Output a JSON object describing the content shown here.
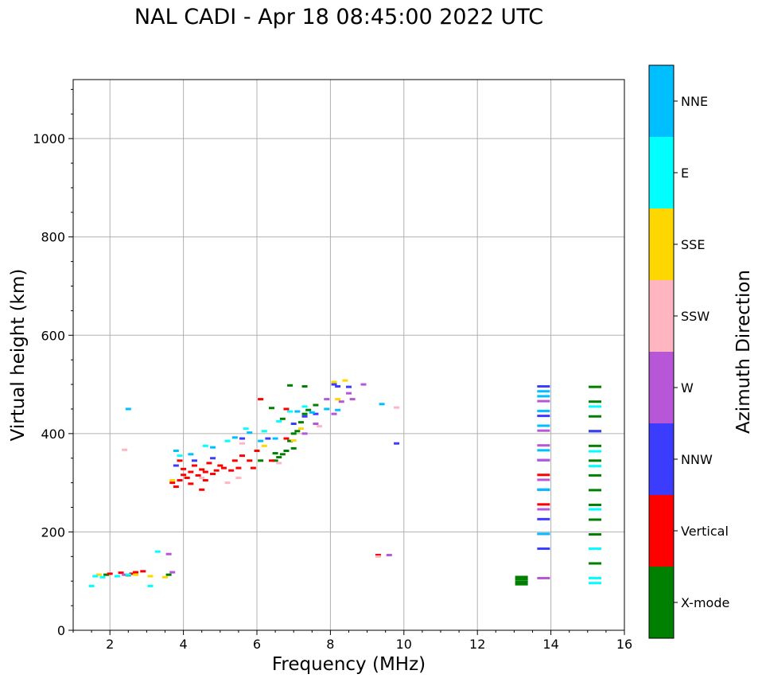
{
  "chart_data": {
    "type": "scatter",
    "title": "NAL CADI - Apr 18 08:45:00 2022 UTC",
    "xlabel": "Frequency (MHz)",
    "ylabel": "Virtual height (km)",
    "xlim": [
      1,
      16
    ],
    "ylim": [
      0,
      1120
    ],
    "xticks": [
      2,
      4,
      6,
      8,
      10,
      12,
      14,
      16
    ],
    "yticks": [
      0,
      200,
      400,
      600,
      800,
      1000
    ],
    "grid": true,
    "colorbar": {
      "label": "Azimuth Direction",
      "categories": [
        {
          "name": "X-mode",
          "color": "#008000"
        },
        {
          "name": "Vertical",
          "color": "#ff0000"
        },
        {
          "name": "NNW",
          "color": "#3c3cff"
        },
        {
          "name": "W",
          "color": "#b757d8"
        },
        {
          "name": "SSW",
          "color": "#ffb6c1"
        },
        {
          "name": "SSE",
          "color": "#ffd700"
        },
        {
          "name": "E",
          "color": "#00ffff"
        },
        {
          "name": "NNE",
          "color": "#00bfff"
        }
      ]
    },
    "series": [
      {
        "name": "X-mode",
        "points": [
          [
            1.9,
            113
          ],
          [
            2.5,
            112
          ],
          [
            3.6,
            113
          ],
          [
            6.5,
            345
          ],
          [
            6.5,
            360
          ],
          [
            6.6,
            352
          ],
          [
            6.7,
            358
          ],
          [
            6.8,
            365
          ],
          [
            6.9,
            385
          ],
          [
            7.0,
            370
          ],
          [
            7.0,
            400
          ],
          [
            7.1,
            405
          ],
          [
            7.2,
            423
          ],
          [
            7.3,
            440
          ],
          [
            7.4,
            448
          ],
          [
            7.6,
            458
          ],
          [
            6.9,
            498
          ],
          [
            7.3,
            496
          ],
          [
            13.2,
            96
          ],
          [
            13.2,
            106
          ],
          [
            15.2,
            136
          ],
          [
            15.2,
            195
          ],
          [
            15.2,
            225
          ],
          [
            15.2,
            255
          ],
          [
            15.2,
            285
          ],
          [
            15.2,
            315
          ],
          [
            15.2,
            345
          ],
          [
            15.2,
            375
          ],
          [
            15.2,
            405
          ],
          [
            15.2,
            435
          ],
          [
            15.2,
            465
          ],
          [
            15.2,
            495
          ],
          [
            6.4,
            452
          ],
          [
            6.7,
            430
          ],
          [
            6.1,
            345
          ]
        ]
      },
      {
        "name": "Vertical",
        "points": [
          [
            2.0,
            115
          ],
          [
            2.3,
            117
          ],
          [
            2.6,
            115
          ],
          [
            2.7,
            118
          ],
          [
            2.9,
            120
          ],
          [
            3.7,
            300
          ],
          [
            3.8,
            292
          ],
          [
            3.9,
            305
          ],
          [
            4.0,
            316
          ],
          [
            4.0,
            328
          ],
          [
            4.1,
            310
          ],
          [
            4.2,
            322
          ],
          [
            4.2,
            298
          ],
          [
            4.3,
            335
          ],
          [
            4.4,
            315
          ],
          [
            4.5,
            327
          ],
          [
            4.6,
            322
          ],
          [
            4.6,
            305
          ],
          [
            4.7,
            340
          ],
          [
            4.8,
            318
          ],
          [
            4.9,
            325
          ],
          [
            5.0,
            335
          ],
          [
            5.1,
            330
          ],
          [
            5.3,
            325
          ],
          [
            5.4,
            345
          ],
          [
            5.5,
            330
          ],
          [
            5.6,
            355
          ],
          [
            5.8,
            345
          ],
          [
            5.9,
            330
          ],
          [
            6.0,
            365
          ],
          [
            6.1,
            470
          ],
          [
            6.4,
            345
          ],
          [
            6.8,
            390
          ],
          [
            6.8,
            450
          ],
          [
            9.3,
            153
          ],
          [
            13.8,
            316
          ],
          [
            13.8,
            256
          ],
          [
            4.5,
            286
          ],
          [
            3.9,
            345
          ]
        ]
      },
      {
        "name": "NNW",
        "points": [
          [
            3.8,
            335
          ],
          [
            4.3,
            345
          ],
          [
            4.8,
            350
          ],
          [
            5.6,
            390
          ],
          [
            6.3,
            390
          ],
          [
            7.0,
            420
          ],
          [
            7.3,
            435
          ],
          [
            7.6,
            440
          ],
          [
            8.1,
            500
          ],
          [
            8.2,
            496
          ],
          [
            8.5,
            495
          ],
          [
            9.8,
            380
          ],
          [
            13.8,
            166
          ],
          [
            13.8,
            226
          ],
          [
            13.8,
            286
          ],
          [
            13.8,
            346
          ],
          [
            13.8,
            436
          ],
          [
            13.8,
            496
          ],
          [
            15.2,
            405
          ]
        ]
      },
      {
        "name": "W",
        "points": [
          [
            2.4,
            113
          ],
          [
            3.6,
            155
          ],
          [
            3.7,
            118
          ],
          [
            7.3,
            400
          ],
          [
            7.6,
            420
          ],
          [
            7.9,
            470
          ],
          [
            8.1,
            440
          ],
          [
            8.3,
            465
          ],
          [
            8.5,
            482
          ],
          [
            8.6,
            470
          ],
          [
            8.9,
            500
          ],
          [
            9.6,
            153
          ],
          [
            13.8,
            106
          ],
          [
            13.8,
            196
          ],
          [
            13.8,
            246
          ],
          [
            13.8,
            306
          ],
          [
            13.8,
            346
          ],
          [
            13.8,
            376
          ],
          [
            13.8,
            406
          ],
          [
            13.8,
            466
          ]
        ]
      },
      {
        "name": "SSW",
        "points": [
          [
            2.4,
            367
          ],
          [
            4.5,
            310
          ],
          [
            5.2,
            300
          ],
          [
            5.5,
            310
          ],
          [
            6.6,
            340
          ],
          [
            9.3,
            150
          ],
          [
            9.8,
            453
          ],
          [
            7.7,
            415
          ],
          [
            5.6,
            380
          ]
        ]
      },
      {
        "name": "SSE",
        "points": [
          [
            1.7,
            113
          ],
          [
            2.7,
            113
          ],
          [
            3.1,
            110
          ],
          [
            3.5,
            108
          ],
          [
            3.7,
            305
          ],
          [
            6.2,
            375
          ],
          [
            7.0,
            386
          ],
          [
            7.2,
            410
          ],
          [
            8.2,
            470
          ],
          [
            8.4,
            508
          ],
          [
            8.1,
            505
          ]
        ]
      },
      {
        "name": "E",
        "points": [
          [
            1.5,
            90
          ],
          [
            1.6,
            110
          ],
          [
            1.8,
            108
          ],
          [
            2.2,
            110
          ],
          [
            2.5,
            113
          ],
          [
            3.1,
            90
          ],
          [
            3.3,
            160
          ],
          [
            3.9,
            355
          ],
          [
            4.6,
            375
          ],
          [
            5.2,
            385
          ],
          [
            5.7,
            410
          ],
          [
            6.2,
            405
          ],
          [
            6.6,
            425
          ],
          [
            6.9,
            445
          ],
          [
            7.3,
            455
          ],
          [
            15.2,
            96
          ],
          [
            15.2,
            106
          ],
          [
            15.2,
            166
          ],
          [
            15.2,
            246
          ],
          [
            15.2,
            334
          ],
          [
            15.2,
            364
          ],
          [
            15.2,
            455
          ]
        ]
      },
      {
        "name": "NNE",
        "points": [
          [
            3.8,
            365
          ],
          [
            4.2,
            358
          ],
          [
            4.8,
            372
          ],
          [
            5.4,
            392
          ],
          [
            5.8,
            402
          ],
          [
            6.1,
            385
          ],
          [
            6.5,
            390
          ],
          [
            7.1,
            445
          ],
          [
            7.5,
            443
          ],
          [
            7.9,
            450
          ],
          [
            8.2,
            448
          ],
          [
            9.4,
            460
          ],
          [
            13.8,
            196
          ],
          [
            13.8,
            286
          ],
          [
            13.8,
            366
          ],
          [
            13.8,
            416
          ],
          [
            13.8,
            446
          ],
          [
            13.8,
            476
          ],
          [
            13.8,
            486
          ],
          [
            2.5,
            450
          ]
        ]
      }
    ]
  }
}
